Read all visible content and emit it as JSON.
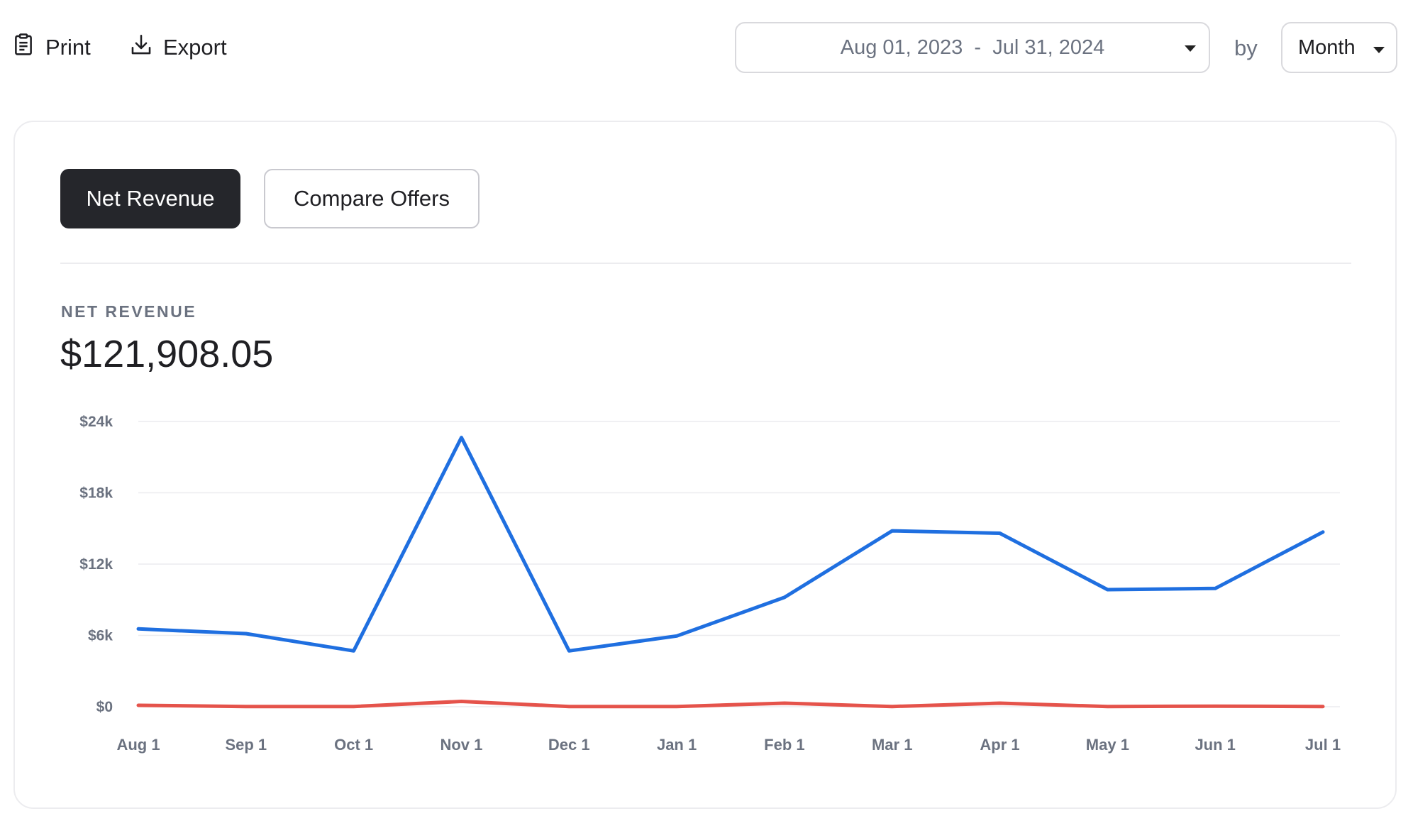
{
  "toolbar": {
    "print_label": "Print",
    "export_label": "Export",
    "print_icon": "clipboard-icon",
    "export_icon": "download-icon"
  },
  "filters": {
    "date_range": "Aug 01, 2023  -  Jul 31, 2024",
    "by_label": "by",
    "period": "Month"
  },
  "tabs": [
    {
      "label": "Net Revenue",
      "active": true
    },
    {
      "label": "Compare Offers",
      "active": false
    }
  ],
  "metric": {
    "label": "NET REVENUE",
    "value": "$121,908.05"
  },
  "colors": {
    "series_primary": "#1f6fe0",
    "series_secondary": "#e5534b",
    "active_tab": "#25262b"
  },
  "chart_data": {
    "type": "line",
    "title": "",
    "xlabel": "",
    "ylabel": "",
    "categories": [
      "Aug 1",
      "Sep 1",
      "Oct 1",
      "Nov 1",
      "Dec 1",
      "Jan 1",
      "Feb 1",
      "Mar 1",
      "Apr 1",
      "May 1",
      "Jun 1",
      "Jul 1"
    ],
    "y_ticks": [
      "$0",
      "$6k",
      "$12k",
      "$18k",
      "$24k"
    ],
    "ylim": [
      0,
      24000
    ],
    "grid": true,
    "legend": "none",
    "series": [
      {
        "color": "#1f6fe0",
        "values": [
          6550,
          6150,
          4700,
          22650,
          4700,
          5950,
          9200,
          14800,
          14600,
          9850,
          9950,
          14700
        ]
      },
      {
        "color": "#e5534b",
        "values": [
          120,
          20,
          20,
          450,
          20,
          20,
          300,
          20,
          300,
          20,
          50,
          20
        ]
      }
    ]
  }
}
